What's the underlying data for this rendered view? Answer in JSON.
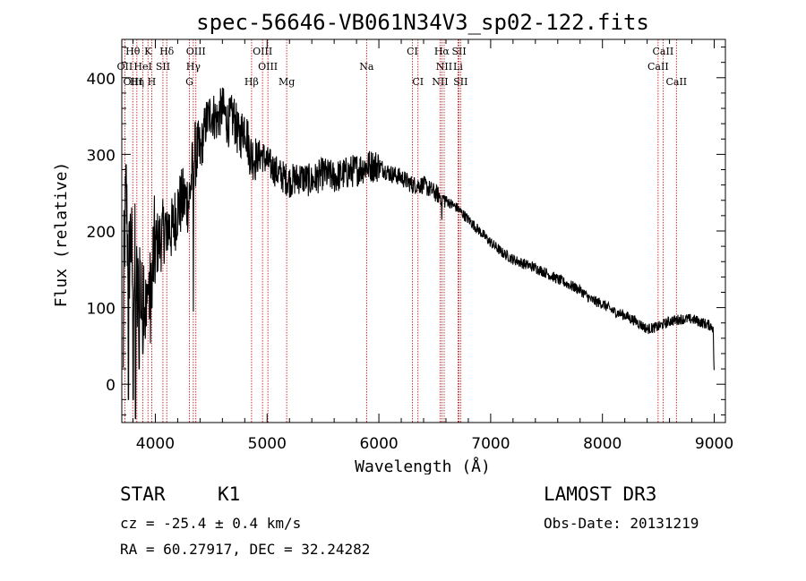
{
  "chart_data": {
    "type": "line",
    "title": "spec-56646-VB061N34V3_sp02-122.fits",
    "xlabel": "Wavelength (Å)",
    "ylabel": "Flux (relative)",
    "xlim": [
      3700,
      9100
    ],
    "ylim": [
      -50,
      450
    ],
    "xticks": [
      4000,
      5000,
      6000,
      7000,
      8000,
      9000
    ],
    "yticks": [
      0,
      100,
      200,
      300,
      400
    ],
    "x_tick_labels": [
      "4000",
      "5000",
      "6000",
      "7000",
      "8000",
      "9000"
    ],
    "y_tick_labels": [
      "0",
      "100",
      "200",
      "300",
      "400"
    ],
    "colors": {
      "spectrum": "#000000",
      "line_marker": "#cc0000",
      "frame": "#000000"
    },
    "series": [
      {
        "name": "spectrum",
        "anchors": [
          [
            3710,
            0
          ],
          [
            3720,
            170
          ],
          [
            3740,
            250
          ],
          [
            3760,
            140
          ],
          [
            3780,
            200
          ],
          [
            3800,
            120
          ],
          [
            3820,
            170
          ],
          [
            3840,
            100
          ],
          [
            3860,
            150
          ],
          [
            3880,
            90
          ],
          [
            3900,
            140
          ],
          [
            3920,
            70
          ],
          [
            3940,
            130
          ],
          [
            3960,
            90
          ],
          [
            3980,
            160
          ],
          [
            4000,
            180
          ],
          [
            4050,
            190
          ],
          [
            4100,
            210
          ],
          [
            4150,
            200
          ],
          [
            4200,
            230
          ],
          [
            4250,
            240
          ],
          [
            4300,
            240
          ],
          [
            4350,
            300
          ],
          [
            4400,
            300
          ],
          [
            4450,
            340
          ],
          [
            4500,
            355
          ],
          [
            4550,
            345
          ],
          [
            4600,
            360
          ],
          [
            4650,
            340
          ],
          [
            4700,
            350
          ],
          [
            4750,
            320
          ],
          [
            4800,
            340
          ],
          [
            4850,
            300
          ],
          [
            4900,
            295
          ],
          [
            4950,
            300
          ],
          [
            5000,
            290
          ],
          [
            5100,
            275
          ],
          [
            5200,
            265
          ],
          [
            5300,
            270
          ],
          [
            5400,
            265
          ],
          [
            5500,
            275
          ],
          [
            5600,
            270
          ],
          [
            5700,
            275
          ],
          [
            5800,
            280
          ],
          [
            5900,
            285
          ],
          [
            6000,
            285
          ],
          [
            6100,
            275
          ],
          [
            6200,
            270
          ],
          [
            6300,
            260
          ],
          [
            6400,
            260
          ],
          [
            6500,
            250
          ],
          [
            6600,
            240
          ],
          [
            6700,
            230
          ],
          [
            6800,
            215
          ],
          [
            6900,
            200
          ],
          [
            7000,
            185
          ],
          [
            7100,
            172
          ],
          [
            7200,
            163
          ],
          [
            7300,
            157
          ],
          [
            7400,
            152
          ],
          [
            7500,
            145
          ],
          [
            7600,
            137
          ],
          [
            7700,
            130
          ],
          [
            7800,
            123
          ],
          [
            7900,
            110
          ],
          [
            8000,
            105
          ],
          [
            8100,
            95
          ],
          [
            8200,
            90
          ],
          [
            8300,
            82
          ],
          [
            8400,
            72
          ],
          [
            8500,
            75
          ],
          [
            8600,
            82
          ],
          [
            8700,
            85
          ],
          [
            8800,
            85
          ],
          [
            8900,
            80
          ],
          [
            8990,
            75
          ],
          [
            9000,
            10
          ]
        ],
        "deep_drops": [
          [
            3760,
            -20
          ],
          [
            3802,
            -20
          ],
          [
            3823,
            -45
          ],
          [
            3855,
            20
          ],
          [
            3888,
            40
          ],
          [
            3934,
            130
          ],
          [
            3970,
            100
          ],
          [
            4101,
            175
          ],
          [
            4340,
            95
          ],
          [
            4862,
            275
          ],
          [
            6563,
            215
          ]
        ]
      }
    ],
    "line_labels": [
      {
        "name": "Hθ",
        "wavelength": 3798,
        "row": 1
      },
      {
        "name": "K",
        "wavelength": 3934,
        "row": 1
      },
      {
        "name": "Hδ",
        "wavelength": 4102,
        "row": 1
      },
      {
        "name": "OIII",
        "wavelength": 4363,
        "row": 1
      },
      {
        "name": "OIII",
        "wavelength": 4959,
        "row": 1
      },
      {
        "name": "CI",
        "wavelength": 6300,
        "row": 1
      },
      {
        "name": "Hα",
        "wavelength": 6563,
        "row": 1
      },
      {
        "name": "SII",
        "wavelength": 6717,
        "row": 1
      },
      {
        "name": "CaII",
        "wavelength": 8542,
        "row": 1
      },
      {
        "name": "OII",
        "wavelength": 3727,
        "row": 2
      },
      {
        "name": "HeI",
        "wavelength": 3889,
        "row": 2
      },
      {
        "name": "SII",
        "wavelength": 4068,
        "row": 2
      },
      {
        "name": "Hγ",
        "wavelength": 4340,
        "row": 2
      },
      {
        "name": "OIII",
        "wavelength": 5007,
        "row": 2
      },
      {
        "name": "Na",
        "wavelength": 5890,
        "row": 2
      },
      {
        "name": "NII",
        "wavelength": 6584,
        "row": 2
      },
      {
        "name": "Li",
        "wavelength": 6708,
        "row": 2
      },
      {
        "name": "CaII",
        "wavelength": 8498,
        "row": 2
      },
      {
        "name": "OIII",
        "wavelength": 3800,
        "row": 3
      },
      {
        "name": "Hη",
        "wavelength": 3835,
        "row": 3
      },
      {
        "name": "H",
        "wavelength": 3968,
        "row": 3
      },
      {
        "name": "G",
        "wavelength": 4305,
        "row": 3
      },
      {
        "name": "Hβ",
        "wavelength": 4861,
        "row": 3
      },
      {
        "name": "Mg",
        "wavelength": 5175,
        "row": 3
      },
      {
        "name": "CI",
        "wavelength": 6350,
        "row": 3
      },
      {
        "name": "NII",
        "wavelength": 6548,
        "row": 3
      },
      {
        "name": "SII",
        "wavelength": 6731,
        "row": 3
      },
      {
        "name": "CaII",
        "wavelength": 8662,
        "row": 3
      }
    ],
    "marker_wavelengths": [
      3727,
      3798,
      3835,
      3889,
      3934,
      3968,
      4068,
      4102,
      4305,
      4340,
      4363,
      4861,
      4959,
      5007,
      5175,
      5890,
      6300,
      6350,
      6548,
      6563,
      6584,
      6708,
      6717,
      6731,
      8498,
      8542,
      8662
    ]
  },
  "info": {
    "class": "STAR",
    "subclass": "K1",
    "survey": "LAMOST DR3",
    "redshift_line": "cz = -25.4 ± 0.4 km/s",
    "obs_date": "Obs-Date: 20131219",
    "coords": "RA =  60.27917, DEC =  32.24282"
  }
}
